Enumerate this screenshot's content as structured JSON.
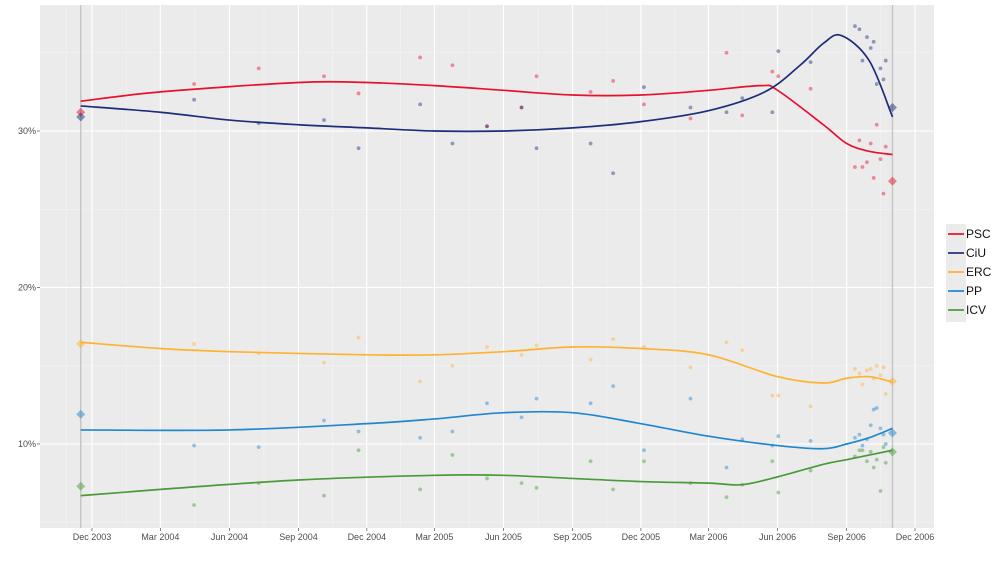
{
  "chart_data": {
    "type": "line",
    "title": "",
    "xlabel": "",
    "ylabel": "",
    "x_range": [
      "2003-10-01",
      "2007-01-01"
    ],
    "ylim": [
      4.6,
      38.0
    ],
    "grid": true,
    "legend_placement": "right",
    "x_ticks": [
      {
        "date": "2003-12-01",
        "label": "Dec 2003"
      },
      {
        "date": "2004-03-01",
        "label": "Mar 2004"
      },
      {
        "date": "2004-06-01",
        "label": "Jun 2004"
      },
      {
        "date": "2004-09-01",
        "label": "Sep 2004"
      },
      {
        "date": "2004-12-01",
        "label": "Dec 2004"
      },
      {
        "date": "2005-03-01",
        "label": "Mar 2005"
      },
      {
        "date": "2005-06-01",
        "label": "Jun 2005"
      },
      {
        "date": "2005-09-01",
        "label": "Sep 2005"
      },
      {
        "date": "2005-12-01",
        "label": "Dec 2005"
      },
      {
        "date": "2006-03-01",
        "label": "Mar 2006"
      },
      {
        "date": "2006-06-01",
        "label": "Jun 2006"
      },
      {
        "date": "2006-09-01",
        "label": "Sep 2006"
      },
      {
        "date": "2006-12-01",
        "label": "Dec 2006"
      }
    ],
    "y_ticks": [
      {
        "value": 10,
        "label": "10%"
      },
      {
        "value": 20,
        "label": "20%"
      },
      {
        "value": 30,
        "label": "30%"
      }
    ],
    "elections": [
      "2003-11-16",
      "2006-11-01"
    ],
    "series": [
      {
        "name": "PSC",
        "color": "#e8112d",
        "trend": [
          [
            "2003-11-16",
            31.9
          ],
          [
            "2004-03-01",
            32.5
          ],
          [
            "2004-09-01",
            33.1
          ],
          [
            "2004-12-01",
            33.1
          ],
          [
            "2005-03-01",
            32.9
          ],
          [
            "2005-06-01",
            32.6
          ],
          [
            "2005-09-01",
            32.3
          ],
          [
            "2005-12-01",
            32.3
          ],
          [
            "2006-03-01",
            32.6
          ],
          [
            "2006-05-10",
            32.9
          ],
          [
            "2006-06-01",
            32.6
          ],
          [
            "2006-08-01",
            30.4
          ],
          [
            "2006-09-01",
            29.2
          ],
          [
            "2006-10-01",
            28.7
          ],
          [
            "2006-11-01",
            28.5
          ]
        ],
        "results": [
          31.2,
          26.8
        ]
      },
      {
        "name": "CiU",
        "color": "#1c2d7a",
        "trend": [
          [
            "2003-11-16",
            31.6
          ],
          [
            "2004-03-01",
            31.2
          ],
          [
            "2004-06-01",
            30.7
          ],
          [
            "2004-09-01",
            30.4
          ],
          [
            "2004-12-01",
            30.2
          ],
          [
            "2005-03-01",
            30.0
          ],
          [
            "2005-06-01",
            30.0
          ],
          [
            "2005-09-01",
            30.2
          ],
          [
            "2005-12-01",
            30.6
          ],
          [
            "2006-03-01",
            31.3
          ],
          [
            "2006-05-15",
            32.5
          ],
          [
            "2006-07-01",
            34.2
          ],
          [
            "2006-08-01",
            35.6
          ],
          [
            "2006-08-25",
            36.1
          ],
          [
            "2006-10-01",
            34.5
          ],
          [
            "2006-11-01",
            30.9
          ]
        ],
        "results": [
          30.9,
          31.5
        ]
      },
      {
        "name": "ERC",
        "color": "#ffb232",
        "trend": [
          [
            "2003-11-16",
            16.5
          ],
          [
            "2004-03-01",
            16.1
          ],
          [
            "2004-06-01",
            15.9
          ],
          [
            "2004-12-01",
            15.7
          ],
          [
            "2005-03-01",
            15.7
          ],
          [
            "2005-06-01",
            15.9
          ],
          [
            "2005-09-01",
            16.2
          ],
          [
            "2005-12-01",
            16.1
          ],
          [
            "2006-03-01",
            15.7
          ],
          [
            "2006-06-01",
            14.3
          ],
          [
            "2006-08-01",
            13.9
          ],
          [
            "2006-09-01",
            14.2
          ],
          [
            "2006-10-01",
            14.3
          ],
          [
            "2006-11-01",
            13.96
          ]
        ],
        "results": [
          16.4,
          14.0
        ]
      },
      {
        "name": "PP",
        "color": "#1f86d0",
        "trend": [
          [
            "2003-11-16",
            10.9
          ],
          [
            "2004-06-01",
            10.9
          ],
          [
            "2004-12-01",
            11.3
          ],
          [
            "2005-03-01",
            11.6
          ],
          [
            "2005-06-01",
            12.0
          ],
          [
            "2005-09-01",
            12.0
          ],
          [
            "2005-12-01",
            11.3
          ],
          [
            "2006-03-01",
            10.5
          ],
          [
            "2006-06-01",
            9.9
          ],
          [
            "2006-08-01",
            9.7
          ],
          [
            "2006-09-01",
            10.0
          ],
          [
            "2006-10-01",
            10.4
          ],
          [
            "2006-11-01",
            11.0
          ]
        ],
        "results": [
          11.9,
          10.7
        ]
      },
      {
        "name": "ICV",
        "color": "#4a9a3a",
        "trend": [
          [
            "2003-11-16",
            6.7
          ],
          [
            "2004-03-01",
            7.1
          ],
          [
            "2004-09-01",
            7.7
          ],
          [
            "2005-03-01",
            8.0
          ],
          [
            "2005-06-01",
            8.0
          ],
          [
            "2005-09-01",
            7.8
          ],
          [
            "2005-12-01",
            7.6
          ],
          [
            "2006-03-01",
            7.5
          ],
          [
            "2006-04-15",
            7.4
          ],
          [
            "2006-06-01",
            7.9
          ],
          [
            "2006-08-01",
            8.7
          ],
          [
            "2006-09-01",
            9.0
          ],
          [
            "2006-11-01",
            9.6
          ]
        ],
        "results": [
          7.3,
          9.5
        ]
      }
    ],
    "polls": [
      {
        "date": "2004-04-15",
        "PSC": 33.0,
        "CiU": 32.0,
        "ERC": 16.4,
        "PP": 9.9,
        "ICV": 6.1
      },
      {
        "date": "2004-07-10",
        "PSC": 34.0,
        "CiU": 30.5,
        "ERC": 15.8,
        "PP": 9.8,
        "ICV": 7.5
      },
      {
        "date": "2004-10-05",
        "PSC": 33.5,
        "CiU": 30.7,
        "ERC": 15.2,
        "PP": 11.5,
        "ICV": 6.7
      },
      {
        "date": "2004-11-20",
        "PSC": 32.4,
        "CiU": 28.9,
        "ERC": 16.8,
        "PP": 10.8,
        "ICV": 9.6
      },
      {
        "date": "2005-02-10",
        "PSC": 34.7,
        "CiU": 31.7,
        "ERC": 14.0,
        "PP": 10.4,
        "ICV": 7.1
      },
      {
        "date": "2005-03-25",
        "PSC": 34.2,
        "CiU": 29.2,
        "ERC": 15.0,
        "PP": 10.8,
        "ICV": 9.3
      },
      {
        "date": "2005-05-10",
        "PSC": 30.3,
        "CiU": 30.3,
        "ERC": 16.2,
        "PP": 12.6,
        "ICV": 7.8
      },
      {
        "date": "2005-06-25",
        "PSC": 31.5,
        "CiU": 31.5,
        "ERC": 15.7,
        "PP": 11.7,
        "ICV": 7.5
      },
      {
        "date": "2005-07-15",
        "PSC": 33.5,
        "CiU": 28.9,
        "ERC": 16.3,
        "PP": 12.9,
        "ICV": 7.2
      },
      {
        "date": "2005-09-25",
        "PSC": 32.5,
        "CiU": 29.2,
        "ERC": 15.4,
        "PP": 12.6,
        "ICV": 8.9
      },
      {
        "date": "2005-10-25",
        "PSC": 33.2,
        "CiU": 27.3,
        "ERC": 16.7,
        "PP": 13.7,
        "ICV": 7.1
      },
      {
        "date": "2005-12-05",
        "PSC": 31.7,
        "CiU": 32.8,
        "ERC": 16.2,
        "PP": 9.6,
        "ICV": 8.9
      },
      {
        "date": "2006-02-05",
        "PSC": 30.8,
        "CiU": 31.5,
        "ERC": 14.9,
        "PP": 12.9,
        "ICV": 7.5
      },
      {
        "date": "2006-03-25",
        "PSC": 35.0,
        "CiU": 31.2,
        "ERC": 16.5,
        "PP": 8.5,
        "ICV": 6.6
      },
      {
        "date": "2006-04-15",
        "PSC": 31.0,
        "CiU": 32.1,
        "ERC": 16.0,
        "PP": 10.3,
        "ICV": 7.4
      },
      {
        "date": "2006-05-25",
        "PSC": 33.8,
        "CiU": 31.2,
        "ERC": 13.1,
        "PP": 9.9,
        "ICV": 8.9
      },
      {
        "date": "2006-06-02",
        "PSC": 33.5,
        "CiU": 35.1,
        "ERC": 13.1,
        "PP": 10.5,
        "ICV": 6.9
      },
      {
        "date": "2006-07-15",
        "PSC": 32.7,
        "CiU": 34.4,
        "ERC": 12.4,
        "PP": 10.2,
        "ICV": 8.3
      },
      {
        "date": "2006-09-12",
        "PSC": 27.7,
        "CiU": 36.7,
        "ERC": 14.8,
        "PP": 10.4,
        "ICV": 9.2
      },
      {
        "date": "2006-09-18",
        "PSC": 29.4,
        "CiU": 36.5,
        "ERC": 14.5,
        "PP": 10.6,
        "ICV": 9.6
      },
      {
        "date": "2006-09-22",
        "PSC": 27.7,
        "CiU": 34.5,
        "ERC": 13.8,
        "PP": 9.9,
        "ICV": 9.6
      },
      {
        "date": "2006-09-28",
        "PSC": 28.0,
        "CiU": 36.0,
        "ERC": 14.7,
        "PP": 10.3,
        "ICV": 8.9
      },
      {
        "date": "2006-10-03",
        "PSC": 29.2,
        "CiU": 35.3,
        "ERC": 14.8,
        "PP": 11.2,
        "ICV": 9.5
      },
      {
        "date": "2006-10-07",
        "PSC": 27.0,
        "CiU": 35.7,
        "ERC": 14.2,
        "PP": 12.2,
        "ICV": 8.5
      },
      {
        "date": "2006-10-11",
        "PSC": 30.4,
        "CiU": 33.0,
        "ERC": 15.0,
        "PP": 12.3,
        "ICV": 9.0
      },
      {
        "date": "2006-10-16",
        "PSC": 28.2,
        "CiU": 34.0,
        "ERC": 14.4,
        "PP": 11.0,
        "ICV": 7.0
      },
      {
        "date": "2006-10-20",
        "PSC": 26.0,
        "CiU": 33.3,
        "ERC": 14.9,
        "PP": 10.6,
        "ICV": 9.8
      },
      {
        "date": "2006-10-23",
        "PSC": 29.0,
        "CiU": 34.5,
        "ERC": 13.2,
        "PP": 10.0,
        "ICV": 8.8
      }
    ]
  }
}
